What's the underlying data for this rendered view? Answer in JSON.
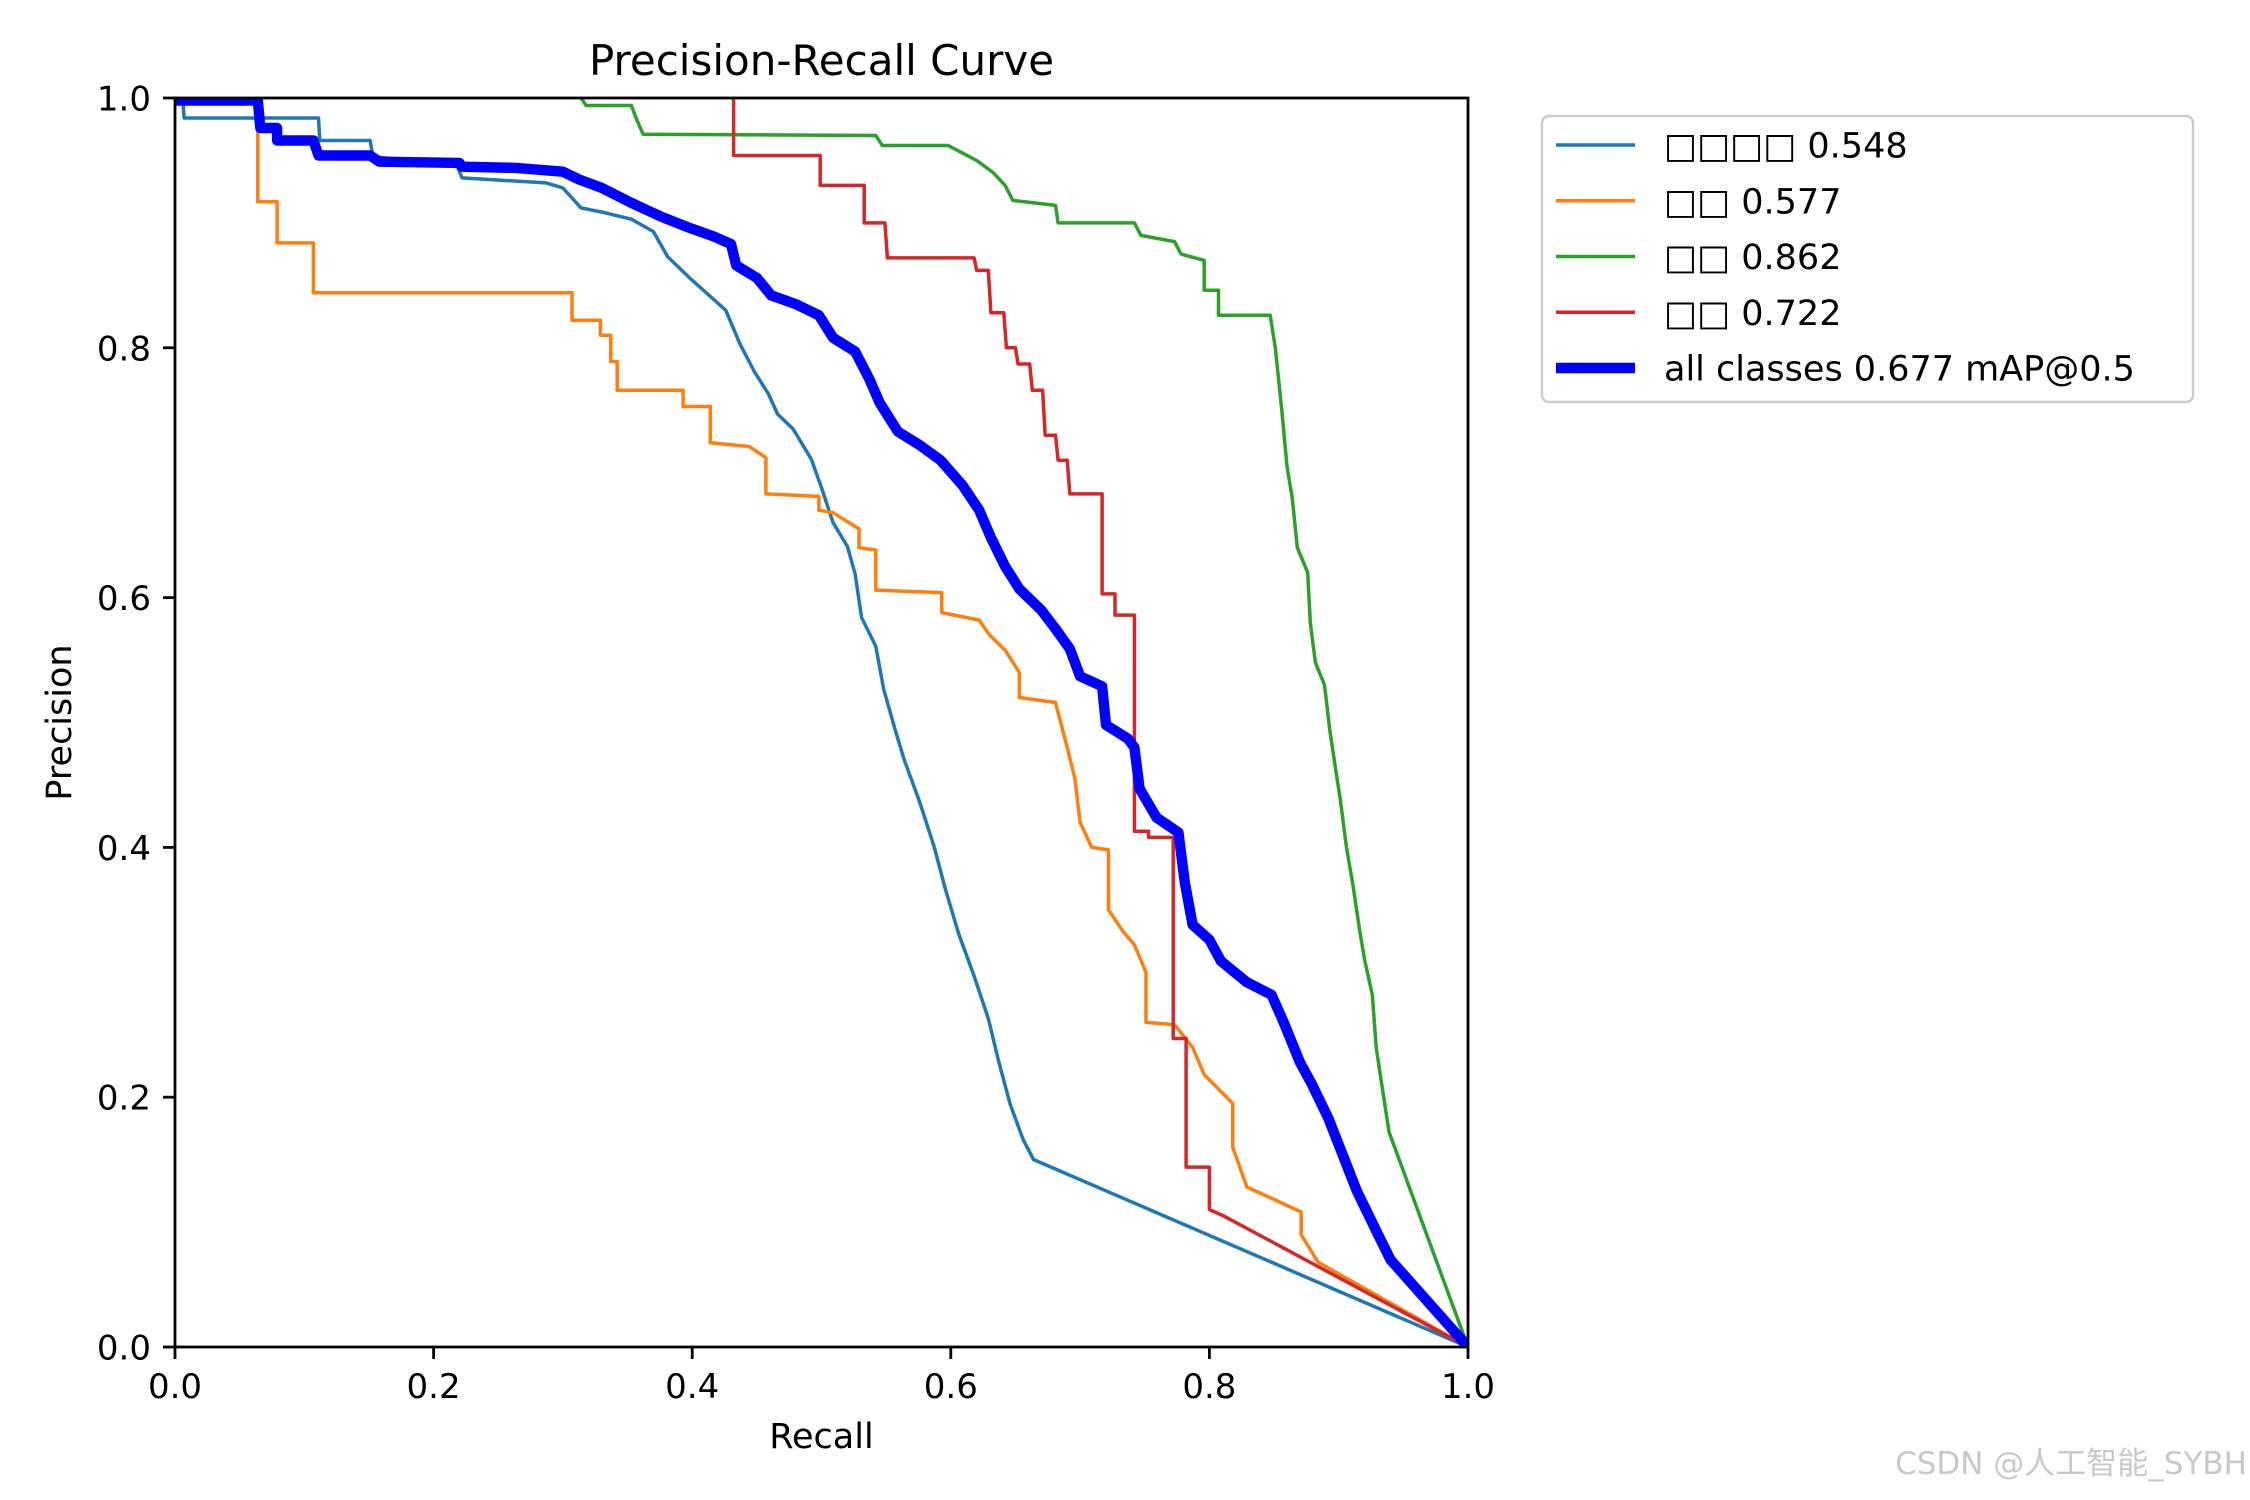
{
  "chart_data": {
    "type": "line",
    "title": "Precision-Recall Curve",
    "xlabel": "Recall",
    "ylabel": "Precision",
    "xlim": [
      0,
      1
    ],
    "ylim": [
      0,
      1
    ],
    "xticks": [
      "0.0",
      "0.2",
      "0.4",
      "0.6",
      "0.8",
      "1.0"
    ],
    "yticks": [
      "0.0",
      "0.2",
      "0.4",
      "0.6",
      "0.8",
      "1.0"
    ],
    "grid": false,
    "legend": "outside upper right",
    "series": [
      {
        "name": "□□□□ 0.548",
        "color": "#1f77b4",
        "points": [
          [
            0.0,
            1.0
          ],
          [
            0.006,
            1.0
          ],
          [
            0.007,
            0.984
          ],
          [
            0.111,
            0.984
          ],
          [
            0.112,
            0.966
          ],
          [
            0.151,
            0.966
          ],
          [
            0.153,
            0.953
          ],
          [
            0.218,
            0.946
          ],
          [
            0.222,
            0.936
          ],
          [
            0.287,
            0.932
          ],
          [
            0.3,
            0.928
          ],
          [
            0.314,
            0.912
          ],
          [
            0.333,
            0.908
          ],
          [
            0.353,
            0.903
          ],
          [
            0.37,
            0.893
          ],
          [
            0.381,
            0.873
          ],
          [
            0.398,
            0.856
          ],
          [
            0.412,
            0.843
          ],
          [
            0.426,
            0.83
          ],
          [
            0.437,
            0.803
          ],
          [
            0.448,
            0.781
          ],
          [
            0.459,
            0.763
          ],
          [
            0.466,
            0.747
          ],
          [
            0.478,
            0.735
          ],
          [
            0.492,
            0.711
          ],
          [
            0.5,
            0.688
          ],
          [
            0.509,
            0.66
          ],
          [
            0.52,
            0.641
          ],
          [
            0.526,
            0.619
          ],
          [
            0.531,
            0.584
          ],
          [
            0.542,
            0.561
          ],
          [
            0.548,
            0.527
          ],
          [
            0.557,
            0.494
          ],
          [
            0.564,
            0.47
          ],
          [
            0.576,
            0.436
          ],
          [
            0.587,
            0.401
          ],
          [
            0.596,
            0.366
          ],
          [
            0.606,
            0.331
          ],
          [
            0.618,
            0.297
          ],
          [
            0.629,
            0.263
          ],
          [
            0.637,
            0.229
          ],
          [
            0.646,
            0.194
          ],
          [
            0.656,
            0.166
          ],
          [
            0.664,
            0.15
          ],
          [
            1.0,
            0.0
          ]
        ]
      },
      {
        "name": "□□ 0.577",
        "color": "#ff7f0e",
        "points": [
          [
            0.0,
            1.0
          ],
          [
            0.064,
            1.0
          ],
          [
            0.064,
            0.917
          ],
          [
            0.079,
            0.917
          ],
          [
            0.079,
            0.884
          ],
          [
            0.107,
            0.884
          ],
          [
            0.107,
            0.844
          ],
          [
            0.307,
            0.844
          ],
          [
            0.307,
            0.822
          ],
          [
            0.329,
            0.822
          ],
          [
            0.329,
            0.81
          ],
          [
            0.337,
            0.81
          ],
          [
            0.337,
            0.789
          ],
          [
            0.342,
            0.789
          ],
          [
            0.342,
            0.766
          ],
          [
            0.393,
            0.766
          ],
          [
            0.393,
            0.753
          ],
          [
            0.414,
            0.753
          ],
          [
            0.414,
            0.724
          ],
          [
            0.444,
            0.721
          ],
          [
            0.457,
            0.712
          ],
          [
            0.457,
            0.683
          ],
          [
            0.498,
            0.681
          ],
          [
            0.498,
            0.67
          ],
          [
            0.509,
            0.668
          ],
          [
            0.529,
            0.655
          ],
          [
            0.529,
            0.64
          ],
          [
            0.542,
            0.638
          ],
          [
            0.542,
            0.606
          ],
          [
            0.593,
            0.604
          ],
          [
            0.593,
            0.588
          ],
          [
            0.622,
            0.582
          ],
          [
            0.63,
            0.57
          ],
          [
            0.642,
            0.558
          ],
          [
            0.653,
            0.54
          ],
          [
            0.653,
            0.52
          ],
          [
            0.681,
            0.516
          ],
          [
            0.69,
            0.48
          ],
          [
            0.696,
            0.455
          ],
          [
            0.7,
            0.42
          ],
          [
            0.709,
            0.4
          ],
          [
            0.722,
            0.398
          ],
          [
            0.722,
            0.35
          ],
          [
            0.733,
            0.333
          ],
          [
            0.742,
            0.322
          ],
          [
            0.751,
            0.3
          ],
          [
            0.751,
            0.26
          ],
          [
            0.773,
            0.258
          ],
          [
            0.787,
            0.24
          ],
          [
            0.796,
            0.218
          ],
          [
            0.818,
            0.195
          ],
          [
            0.818,
            0.16
          ],
          [
            0.829,
            0.128
          ],
          [
            0.846,
            0.12
          ],
          [
            0.871,
            0.108
          ],
          [
            0.871,
            0.09
          ],
          [
            0.884,
            0.068
          ],
          [
            0.901,
            0.058
          ],
          [
            1.0,
            0.0
          ]
        ]
      },
      {
        "name": "□□ 0.862",
        "color": "#2ca02c",
        "points": [
          [
            0.314,
            1.0
          ],
          [
            0.318,
            0.994
          ],
          [
            0.353,
            0.994
          ],
          [
            0.357,
            0.983
          ],
          [
            0.362,
            0.971
          ],
          [
            0.542,
            0.97
          ],
          [
            0.547,
            0.962
          ],
          [
            0.598,
            0.962
          ],
          [
            0.607,
            0.957
          ],
          [
            0.62,
            0.95
          ],
          [
            0.633,
            0.94
          ],
          [
            0.642,
            0.93
          ],
          [
            0.648,
            0.918
          ],
          [
            0.681,
            0.914
          ],
          [
            0.683,
            0.9
          ],
          [
            0.742,
            0.9
          ],
          [
            0.747,
            0.89
          ],
          [
            0.773,
            0.885
          ],
          [
            0.778,
            0.875
          ],
          [
            0.796,
            0.87
          ],
          [
            0.796,
            0.846
          ],
          [
            0.807,
            0.846
          ],
          [
            0.807,
            0.826
          ],
          [
            0.847,
            0.826
          ],
          [
            0.851,
            0.8
          ],
          [
            0.856,
            0.75
          ],
          [
            0.86,
            0.705
          ],
          [
            0.864,
            0.68
          ],
          [
            0.868,
            0.64
          ],
          [
            0.876,
            0.62
          ],
          [
            0.878,
            0.58
          ],
          [
            0.882,
            0.548
          ],
          [
            0.889,
            0.53
          ],
          [
            0.893,
            0.495
          ],
          [
            0.898,
            0.46
          ],
          [
            0.901,
            0.44
          ],
          [
            0.906,
            0.4
          ],
          [
            0.911,
            0.37
          ],
          [
            0.916,
            0.335
          ],
          [
            0.92,
            0.31
          ],
          [
            0.926,
            0.282
          ],
          [
            0.929,
            0.24
          ],
          [
            0.933,
            0.212
          ],
          [
            0.939,
            0.172
          ],
          [
            1.0,
            0.0
          ]
        ]
      },
      {
        "name": "□□ 0.722",
        "color": "#d62728",
        "points": [
          [
            0.432,
            1.0
          ],
          [
            0.432,
            0.954
          ],
          [
            0.499,
            0.954
          ],
          [
            0.499,
            0.93
          ],
          [
            0.533,
            0.93
          ],
          [
            0.533,
            0.9
          ],
          [
            0.549,
            0.9
          ],
          [
            0.551,
            0.872
          ],
          [
            0.618,
            0.872
          ],
          [
            0.62,
            0.862
          ],
          [
            0.629,
            0.862
          ],
          [
            0.631,
            0.828
          ],
          [
            0.641,
            0.828
          ],
          [
            0.643,
            0.8
          ],
          [
            0.65,
            0.8
          ],
          [
            0.652,
            0.787
          ],
          [
            0.661,
            0.787
          ],
          [
            0.663,
            0.766
          ],
          [
            0.671,
            0.766
          ],
          [
            0.673,
            0.73
          ],
          [
            0.681,
            0.73
          ],
          [
            0.683,
            0.71
          ],
          [
            0.69,
            0.71
          ],
          [
            0.692,
            0.683
          ],
          [
            0.717,
            0.683
          ],
          [
            0.717,
            0.603
          ],
          [
            0.727,
            0.603
          ],
          [
            0.727,
            0.586
          ],
          [
            0.742,
            0.586
          ],
          [
            0.742,
            0.413
          ],
          [
            0.753,
            0.413
          ],
          [
            0.753,
            0.408
          ],
          [
            0.772,
            0.408
          ],
          [
            0.772,
            0.247
          ],
          [
            0.782,
            0.247
          ],
          [
            0.782,
            0.144
          ],
          [
            0.8,
            0.144
          ],
          [
            0.8,
            0.11
          ],
          [
            0.811,
            0.105
          ],
          [
            1.0,
            0.0
          ]
        ]
      },
      {
        "name": "all classes 0.677 mAP@0.5",
        "color": "#0000ff",
        "points": [
          [
            0.0,
            0.998
          ],
          [
            0.064,
            0.998
          ],
          [
            0.066,
            0.976
          ],
          [
            0.079,
            0.976
          ],
          [
            0.079,
            0.966
          ],
          [
            0.107,
            0.966
          ],
          [
            0.111,
            0.954
          ],
          [
            0.151,
            0.954
          ],
          [
            0.158,
            0.949
          ],
          [
            0.22,
            0.948
          ],
          [
            0.222,
            0.945
          ],
          [
            0.264,
            0.944
          ],
          [
            0.3,
            0.941
          ],
          [
            0.312,
            0.935
          ],
          [
            0.33,
            0.928
          ],
          [
            0.353,
            0.916
          ],
          [
            0.376,
            0.905
          ],
          [
            0.398,
            0.896
          ],
          [
            0.417,
            0.889
          ],
          [
            0.43,
            0.883
          ],
          [
            0.434,
            0.866
          ],
          [
            0.45,
            0.856
          ],
          [
            0.461,
            0.842
          ],
          [
            0.48,
            0.835
          ],
          [
            0.498,
            0.826
          ],
          [
            0.509,
            0.808
          ],
          [
            0.526,
            0.797
          ],
          [
            0.537,
            0.775
          ],
          [
            0.545,
            0.756
          ],
          [
            0.559,
            0.733
          ],
          [
            0.576,
            0.722
          ],
          [
            0.592,
            0.71
          ],
          [
            0.609,
            0.69
          ],
          [
            0.622,
            0.67
          ],
          [
            0.631,
            0.648
          ],
          [
            0.642,
            0.625
          ],
          [
            0.653,
            0.607
          ],
          [
            0.67,
            0.59
          ],
          [
            0.681,
            0.575
          ],
          [
            0.692,
            0.559
          ],
          [
            0.7,
            0.537
          ],
          [
            0.717,
            0.529
          ],
          [
            0.72,
            0.498
          ],
          [
            0.737,
            0.487
          ],
          [
            0.742,
            0.48
          ],
          [
            0.746,
            0.447
          ],
          [
            0.759,
            0.424
          ],
          [
            0.776,
            0.412
          ],
          [
            0.781,
            0.372
          ],
          [
            0.787,
            0.338
          ],
          [
            0.8,
            0.326
          ],
          [
            0.809,
            0.309
          ],
          [
            0.829,
            0.292
          ],
          [
            0.848,
            0.282
          ],
          [
            0.857,
            0.261
          ],
          [
            0.87,
            0.228
          ],
          [
            0.879,
            0.211
          ],
          [
            0.892,
            0.183
          ],
          [
            0.903,
            0.154
          ],
          [
            0.914,
            0.125
          ],
          [
            0.929,
            0.093
          ],
          [
            0.94,
            0.07
          ],
          [
            1.0,
            0.0
          ]
        ]
      }
    ]
  },
  "watermark": "CSDN @人工智能_SYBH"
}
